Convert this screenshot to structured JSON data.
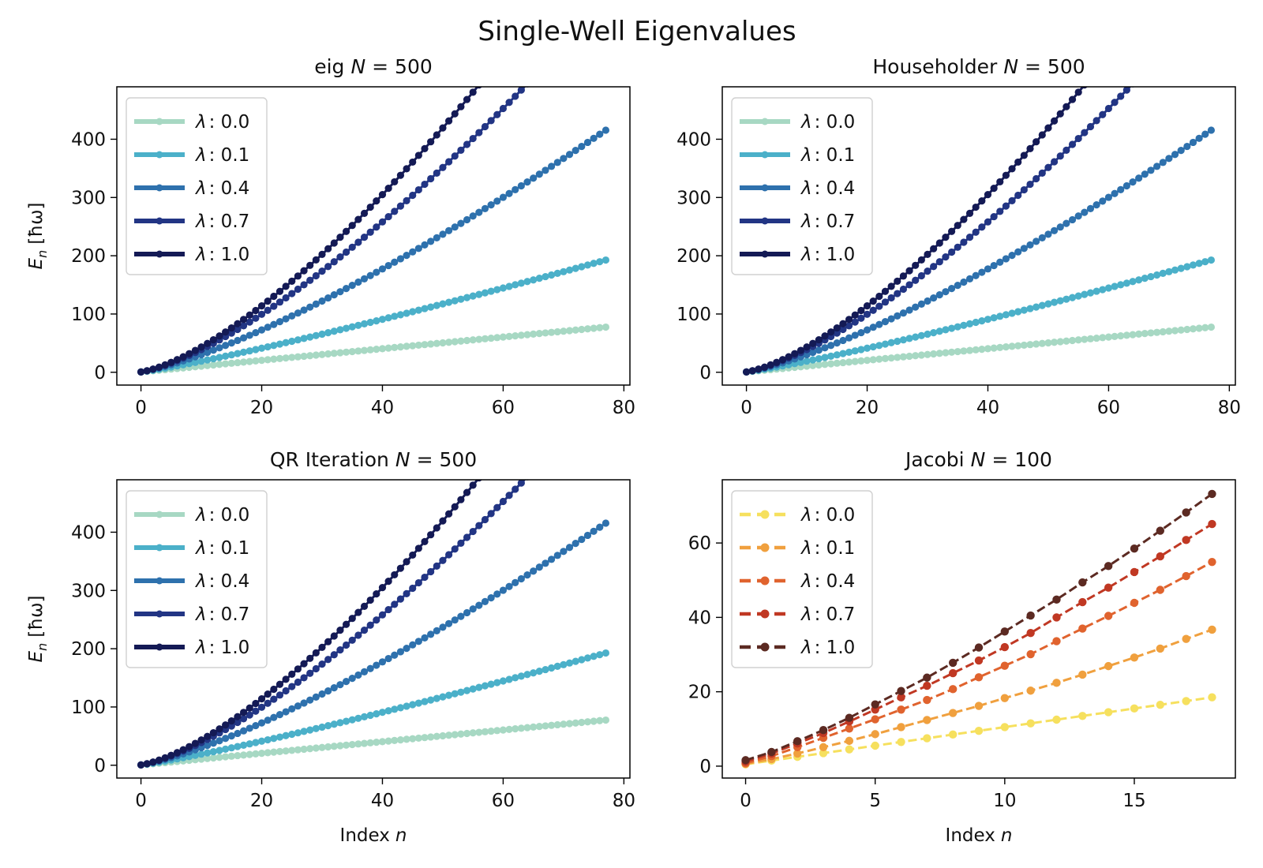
{
  "figure_title": "Single-Well Eigenvalues",
  "chart_data": [
    {
      "type": "line",
      "title": "eig N = 500",
      "title_parts": {
        "method": "eig",
        "var": "N",
        "eq": "= 500"
      },
      "xlabel": "",
      "ylabel": "E_n [ħω]",
      "ylabel_parts": {
        "sym": "E",
        "sub": "n",
        "unit": "[ħω]"
      },
      "xlim": [
        -4,
        81
      ],
      "ylim": [
        -22,
        490
      ],
      "xticks": [
        0,
        20,
        40,
        60,
        80
      ],
      "yticks": [
        0,
        100,
        200,
        300,
        400
      ],
      "grid": false,
      "legend_position": "upper-left",
      "line_style": "solid",
      "x": {
        "start": 0,
        "stop": 77,
        "step": 1
      },
      "series": [
        {
          "name": "λ : 0.0",
          "label_sym": "λ",
          "label_val": ": 0.0",
          "color": "#a7d8c3",
          "model": {
            "a": 1.0,
            "p": 1.0,
            "b": 0
          }
        },
        {
          "name": "λ : 0.1",
          "label_sym": "λ",
          "label_val": ": 0.1",
          "color": "#4bb0c9",
          "model": {
            "a": 1.25,
            "p": 1.158,
            "b": 0
          }
        },
        {
          "name": "λ : 0.4",
          "label_sym": "λ",
          "label_val": ": 0.4",
          "color": "#2e71ad",
          "model": {
            "a": 1.38,
            "p": 1.312,
            "b": 0
          }
        },
        {
          "name": "λ : 0.7",
          "label_sym": "λ",
          "label_val": ": 0.7",
          "color": "#223584",
          "model": {
            "a": 1.45,
            "p": 1.4,
            "b": 0
          }
        },
        {
          "name": "λ : 1.0",
          "label_sym": "λ",
          "label_val": ": 1.0",
          "color": "#141a55",
          "model": {
            "a": 1.45,
            "p": 1.445,
            "b": 0
          }
        }
      ]
    },
    {
      "type": "line",
      "title": "Householder N = 500",
      "title_parts": {
        "method": "Householder",
        "var": "N",
        "eq": "= 500"
      },
      "xlabel": "",
      "ylabel": "",
      "xlim": [
        -4,
        81
      ],
      "ylim": [
        -22,
        490
      ],
      "xticks": [
        0,
        20,
        40,
        60,
        80
      ],
      "yticks": [
        0,
        100,
        200,
        300,
        400
      ],
      "grid": false,
      "legend_position": "upper-left",
      "line_style": "solid",
      "x": {
        "start": 0,
        "stop": 77,
        "step": 1
      },
      "series": [
        {
          "name": "λ : 0.0",
          "label_sym": "λ",
          "label_val": ": 0.0",
          "color": "#a7d8c3",
          "model": {
            "a": 1.0,
            "p": 1.0,
            "b": 0
          }
        },
        {
          "name": "λ : 0.1",
          "label_sym": "λ",
          "label_val": ": 0.1",
          "color": "#4bb0c9",
          "model": {
            "a": 1.25,
            "p": 1.158,
            "b": 0
          }
        },
        {
          "name": "λ : 0.4",
          "label_sym": "λ",
          "label_val": ": 0.4",
          "color": "#2e71ad",
          "model": {
            "a": 1.38,
            "p": 1.312,
            "b": 0
          }
        },
        {
          "name": "λ : 0.7",
          "label_sym": "λ",
          "label_val": ": 0.7",
          "color": "#223584",
          "model": {
            "a": 1.45,
            "p": 1.4,
            "b": 0
          }
        },
        {
          "name": "λ : 1.0",
          "label_sym": "λ",
          "label_val": ": 1.0",
          "color": "#141a55",
          "model": {
            "a": 1.45,
            "p": 1.445,
            "b": 0
          }
        }
      ]
    },
    {
      "type": "line",
      "title": "QR Iteration N = 500",
      "title_parts": {
        "method": "QR Iteration",
        "var": "N",
        "eq": "= 500"
      },
      "xlabel": "Index n",
      "xlabel_parts": {
        "text": "Index",
        "var": "n"
      },
      "ylabel": "E_n [ħω]",
      "ylabel_parts": {
        "sym": "E",
        "sub": "n",
        "unit": "[ħω]"
      },
      "xlim": [
        -4,
        81
      ],
      "ylim": [
        -22,
        490
      ],
      "xticks": [
        0,
        20,
        40,
        60,
        80
      ],
      "yticks": [
        0,
        100,
        200,
        300,
        400
      ],
      "grid": false,
      "legend_position": "upper-left",
      "line_style": "solid",
      "x": {
        "start": 0,
        "stop": 77,
        "step": 1
      },
      "series": [
        {
          "name": "λ : 0.0",
          "label_sym": "λ",
          "label_val": ": 0.0",
          "color": "#a7d8c3",
          "model": {
            "a": 1.0,
            "p": 1.0,
            "b": 0
          }
        },
        {
          "name": "λ : 0.1",
          "label_sym": "λ",
          "label_val": ": 0.1",
          "color": "#4bb0c9",
          "model": {
            "a": 1.25,
            "p": 1.158,
            "b": 0
          }
        },
        {
          "name": "λ : 0.4",
          "label_sym": "λ",
          "label_val": ": 0.4",
          "color": "#2e71ad",
          "model": {
            "a": 1.38,
            "p": 1.312,
            "b": 0
          }
        },
        {
          "name": "λ : 0.7",
          "label_sym": "λ",
          "label_val": ": 0.7",
          "color": "#223584",
          "model": {
            "a": 1.45,
            "p": 1.4,
            "b": 0
          }
        },
        {
          "name": "λ : 1.0",
          "label_sym": "λ",
          "label_val": ": 1.0",
          "color": "#141a55",
          "model": {
            "a": 1.45,
            "p": 1.445,
            "b": 0
          }
        }
      ]
    },
    {
      "type": "line",
      "title": "Jacobi N = 100",
      "title_parts": {
        "method": "Jacobi",
        "var": "N",
        "eq": "= 100"
      },
      "xlabel": "Index n",
      "xlabel_parts": {
        "text": "Index",
        "var": "n"
      },
      "ylabel": "",
      "xlim": [
        -0.9,
        18.9
      ],
      "ylim": [
        -3.2,
        77
      ],
      "xticks": [
        0,
        5,
        10,
        15
      ],
      "yticks": [
        0,
        20,
        40,
        60
      ],
      "grid": false,
      "legend_position": "upper-left",
      "line_style": "dashed",
      "x": {
        "start": 0,
        "stop": 18,
        "step": 1
      },
      "series": [
        {
          "name": "λ : 0.0",
          "label_sym": "λ",
          "label_val": ": 0.0",
          "color": "#f6e05e",
          "values": [
            0.5,
            1.5,
            2.5,
            3.5,
            4.5,
            5.5,
            6.5,
            7.5,
            8.5,
            9.5,
            10.5,
            11.5,
            12.5,
            13.5,
            14.5,
            15.5,
            16.5,
            17.5,
            18.5
          ]
        },
        {
          "name": "λ : 0.1",
          "label_sym": "λ",
          "label_val": ": 0.1",
          "color": "#f0a03e",
          "values": [
            0.6,
            1.9,
            3.4,
            5.1,
            6.8,
            8.6,
            10.5,
            12.4,
            14.3,
            16.2,
            18.3,
            20.3,
            22.4,
            24.6,
            26.9,
            29.2,
            31.6,
            34.2,
            36.7
          ]
        },
        {
          "name": "λ : 0.4",
          "label_sym": "λ",
          "label_val": ": 0.4",
          "color": "#e0632e",
          "values": [
            0.8,
            2.7,
            5.1,
            7.6,
            10.1,
            12.6,
            15.2,
            17.8,
            20.7,
            23.9,
            27.0,
            30.1,
            33.6,
            37.0,
            40.4,
            43.9,
            47.4,
            51.1,
            54.9
          ]
        },
        {
          "name": "λ : 0.7",
          "label_sym": "λ",
          "label_val": ": 0.7",
          "color": "#c03823",
          "values": [
            1.2,
            3.4,
            6.1,
            8.9,
            12.0,
            15.2,
            18.5,
            21.6,
            25.0,
            28.4,
            32.0,
            35.8,
            40.0,
            44.1,
            48.0,
            52.2,
            56.4,
            60.8,
            65.1
          ]
        },
        {
          "name": "λ : 1.0",
          "label_sym": "λ",
          "label_val": ": 1.0",
          "color": "#5c2a22",
          "values": [
            1.6,
            3.8,
            6.7,
            9.7,
            13.0,
            16.6,
            20.2,
            23.8,
            27.8,
            31.9,
            36.2,
            40.5,
            44.8,
            49.4,
            53.8,
            58.5,
            63.3,
            68.2,
            73.2
          ]
        }
      ]
    }
  ]
}
